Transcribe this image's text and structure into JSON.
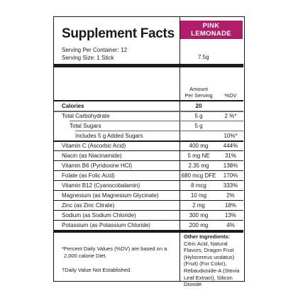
{
  "label": {
    "title": "Supplement Facts",
    "flavor_line1": "PINK",
    "flavor_line2": "LEMONADE",
    "servings_per_container": "Serving Per Container: 12",
    "serving_size": "Serving Size: 1 Stick",
    "serving_size_value": "7.5g",
    "col_amount_line1": "Amount",
    "col_amount_line2": "Per Serving",
    "col_dv": "%DV"
  },
  "rows": [
    {
      "name": "Calories",
      "amount": "20",
      "dv": ""
    },
    {
      "name": "Total Carbohydrate",
      "amount": "5 g",
      "dv": "2 %*"
    },
    {
      "name": "Total Sugars",
      "amount": "5 g",
      "dv": ""
    },
    {
      "name": "Includes 5 g Added Sugars",
      "amount": "",
      "dv": "10%*"
    },
    {
      "name": "Vitamin C (Ascorbic Acid)",
      "amount": "400 mg",
      "dv": "444%"
    },
    {
      "name": "Niacin (as Niacinamide)",
      "amount": "5 mg NE",
      "dv": "31%"
    },
    {
      "name": "Vitamin B6 (Pyridoxine HCl)",
      "amount": "2.35 mg",
      "dv": "138%"
    },
    {
      "name": "Folate (as Folic Acid)",
      "amount": "680 mcg DFE",
      "dv": "170%"
    },
    {
      "name": "Vitamin B12 (Cyanocobalamin)",
      "amount": "8 mcg",
      "dv": "333%"
    },
    {
      "name": "Magnesium (as Magnesium Glycinate)",
      "amount": "10 mg",
      "dv": "2%"
    },
    {
      "name": "Zinc (as Zinc Citrate)",
      "amount": "2 mg",
      "dv": "18%"
    },
    {
      "name": "Sodium (as Sodium Chloride)",
      "amount": "300 mg",
      "dv": "13%"
    },
    {
      "name": "Potassium (as Potassium Chloride)",
      "amount": "200 mg",
      "dv": "4%"
    }
  ],
  "footnotes": {
    "dv_note_line1": "*Percent Daily Values (%DV) are based on a",
    "dv_note_line2": "2,000 calorie Diet.",
    "not_established": "†Daily Value Not Established.",
    "other_ingredients_heading": "Other Ingredients:",
    "other_ingredients": "Citric Acid, Natural Flavors, Dragon Fruit (Hylocereus undatus) (Fruit) (For Color), Rebaudioside-A (Stevia Leaf Extract), Silicon Dioxide"
  },
  "colors": {
    "flavor_badge": "#b01e6a",
    "rule": "#1a1a1a"
  }
}
